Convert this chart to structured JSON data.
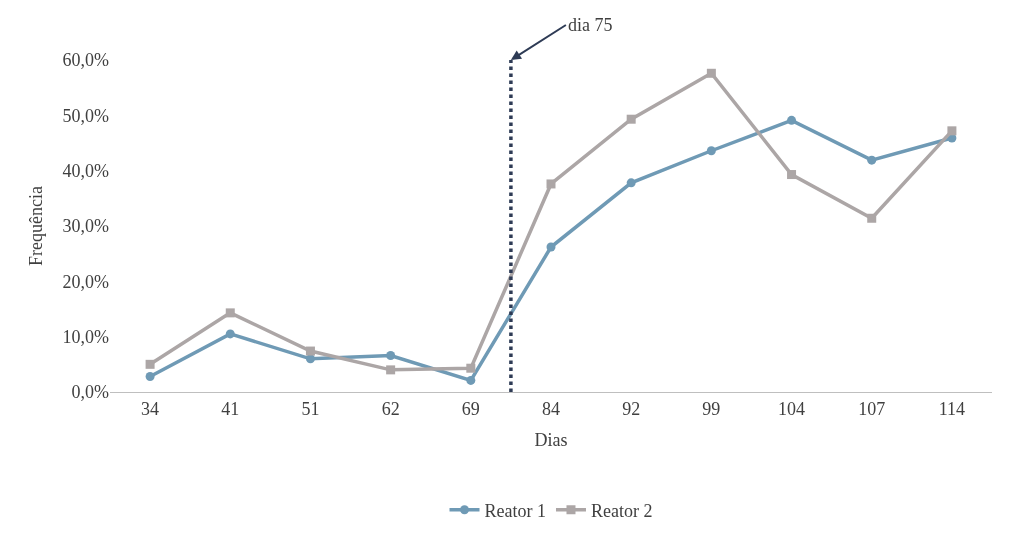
{
  "chart_data": {
    "type": "line",
    "xlabel": "Dias",
    "ylabel": "Frequência",
    "categories": [
      "34",
      "41",
      "51",
      "62",
      "69",
      "84",
      "92",
      "99",
      "104",
      "107",
      "114"
    ],
    "series": [
      {
        "name": "Reator 1",
        "color": "#6f9ab5",
        "marker": "circle",
        "values": [
          2.8,
          10.5,
          6.0,
          6.6,
          2.1,
          26.2,
          37.8,
          43.6,
          49.1,
          41.9,
          45.9
        ]
      },
      {
        "name": "Reator 2",
        "color": "#aca6a6",
        "marker": "square",
        "values": [
          5.0,
          14.3,
          7.4,
          4.0,
          4.3,
          37.6,
          49.3,
          57.6,
          39.3,
          31.4,
          47.2
        ]
      }
    ],
    "ylim": [
      0,
      60
    ],
    "yticks": [
      {
        "value": 0,
        "label": "0,0%"
      },
      {
        "value": 10,
        "label": "10,0%"
      },
      {
        "value": 20,
        "label": "20,0%"
      },
      {
        "value": 30,
        "label": "30,0%"
      },
      {
        "value": 40,
        "label": "40,0%"
      },
      {
        "value": 50,
        "label": "50,0%"
      },
      {
        "value": 60,
        "label": "60,0%"
      }
    ],
    "annotations": [
      "dia 75"
    ],
    "legend": "bottom",
    "line_style": "solid"
  }
}
